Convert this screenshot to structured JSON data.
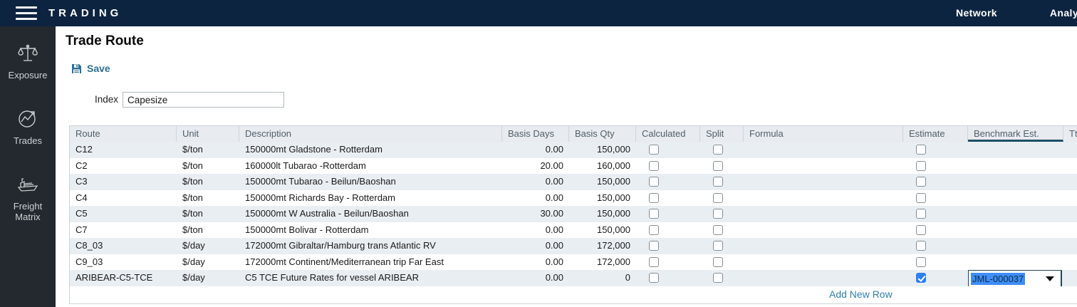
{
  "topbar": {
    "brand": "TRADING",
    "nav": {
      "network": "Network",
      "analytics": "Analy"
    }
  },
  "sidebar": {
    "items": [
      {
        "icon": "scales-icon",
        "label": "Exposure"
      },
      {
        "icon": "trades-chart-icon",
        "label": "Trades"
      },
      {
        "icon": "ship-icon",
        "label": "Freight Matrix"
      }
    ]
  },
  "page": {
    "title": "Trade Route",
    "save_label": "Save",
    "index_label": "Index",
    "index_value": "Capesize",
    "add_row_label": "Add New Row"
  },
  "table": {
    "columns": [
      "Route",
      "Unit",
      "Description",
      "Basis Days",
      "Basis Qty",
      "Calculated",
      "Split",
      "Formula",
      "Estimate",
      "Benchmark Est.",
      "Ttl"
    ],
    "active_column": "Benchmark Est.",
    "rows": [
      {
        "route": "C12",
        "unit": "$/ton",
        "description": "150000mt Gladstone - Rotterdam",
        "basis_days": "0.00",
        "basis_qty": "150,000",
        "calculated": false,
        "split": false,
        "formula": "",
        "estimate": false,
        "benchmark": ""
      },
      {
        "route": "C2",
        "unit": "$/ton",
        "description": "160000lt Tubarao -Rotterdam",
        "basis_days": "20.00",
        "basis_qty": "160,000",
        "calculated": false,
        "split": false,
        "formula": "",
        "estimate": false,
        "benchmark": ""
      },
      {
        "route": "C3",
        "unit": "$/ton",
        "description": "150000mt Tubarao - Beilun/Baoshan",
        "basis_days": "0.00",
        "basis_qty": "150,000",
        "calculated": false,
        "split": false,
        "formula": "",
        "estimate": false,
        "benchmark": ""
      },
      {
        "route": "C4",
        "unit": "$/ton",
        "description": "150000mt Richards Bay - Rotterdam",
        "basis_days": "0.00",
        "basis_qty": "150,000",
        "calculated": false,
        "split": false,
        "formula": "",
        "estimate": false,
        "benchmark": ""
      },
      {
        "route": "C5",
        "unit": "$/ton",
        "description": "150000mt W Australia - Beilun/Baoshan",
        "basis_days": "30.00",
        "basis_qty": "150,000",
        "calculated": false,
        "split": false,
        "formula": "",
        "estimate": false,
        "benchmark": ""
      },
      {
        "route": "C7",
        "unit": "$/ton",
        "description": "150000mt Bolivar - Rotterdam",
        "basis_days": "0.00",
        "basis_qty": "150,000",
        "calculated": false,
        "split": false,
        "formula": "",
        "estimate": false,
        "benchmark": ""
      },
      {
        "route": "C8_03",
        "unit": "$/day",
        "description": "172000mt Gibraltar/Hamburg trans Atlantic RV",
        "basis_days": "0.00",
        "basis_qty": "172,000",
        "calculated": false,
        "split": false,
        "formula": "",
        "estimate": false,
        "benchmark": ""
      },
      {
        "route": "C9_03",
        "unit": "$/day",
        "description": "172000mt Continent/Mediterranean trip Far East",
        "basis_days": "0.00",
        "basis_qty": "172,000",
        "calculated": false,
        "split": false,
        "formula": "",
        "estimate": false,
        "benchmark": ""
      },
      {
        "route": "ARIBEAR-C5-TCE",
        "unit": "$/day",
        "description": "C5 TCE Future Rates for vessel ARIBEAR",
        "basis_days": "0.00",
        "basis_qty": "0",
        "calculated": false,
        "split": false,
        "formula": "",
        "estimate": true,
        "benchmark": "JML-000037"
      }
    ]
  },
  "colors": {
    "topbar": "#0d2440",
    "sidebar": "#24292f",
    "accent_link": "#2b7095",
    "add_row_link": "#2f7fae",
    "header_bg": "#e8ebef",
    "row_stripe": "#e9eef3",
    "table_border": "#ccd3d9",
    "active_column_underline": "#1c4f68",
    "checkbox_checked": "#2e7ef7",
    "selection_highlight": "#3e8ef7"
  }
}
